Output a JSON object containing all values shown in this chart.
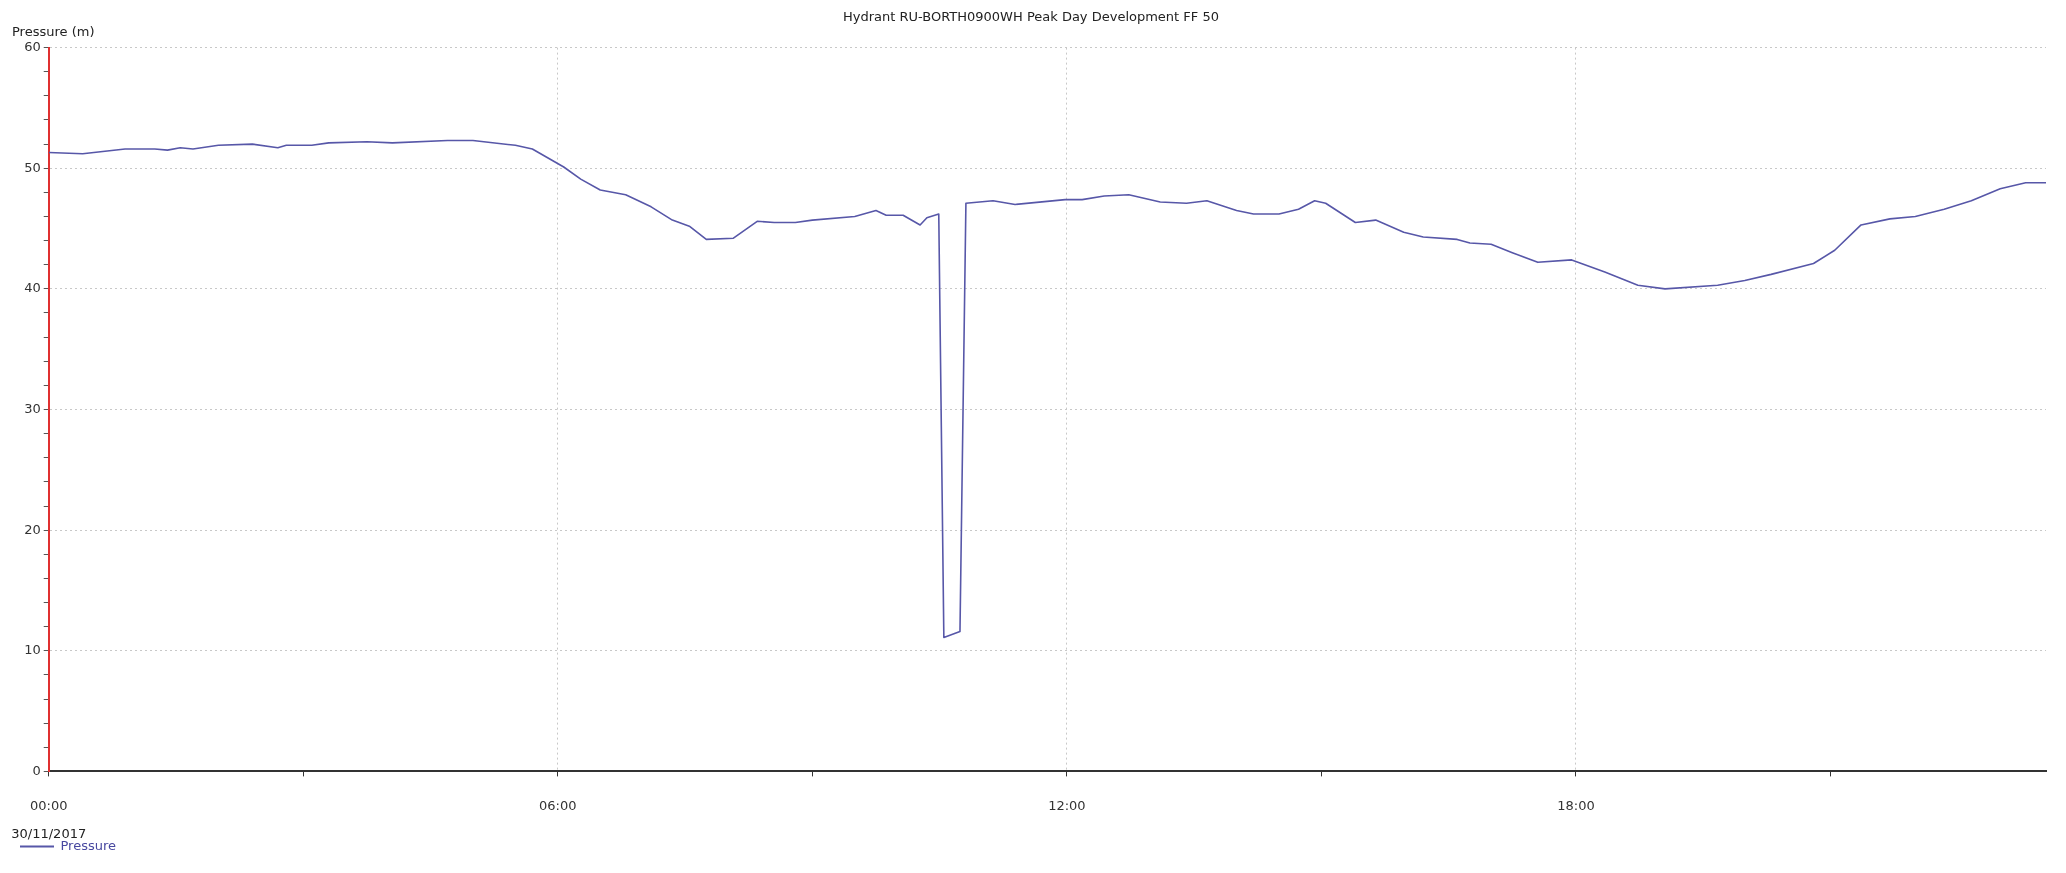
{
  "chart_data": {
    "type": "line",
    "title": "Hydrant RU-BORTH0900WH Peak Day Development FF 50",
    "ylabel": "Pressure (m)",
    "annotations": [
      "30/11/2017"
    ],
    "x": [
      0,
      0.4,
      0.9,
      1.25,
      1.4,
      1.55,
      1.7,
      2.0,
      2.4,
      2.7,
      2.8,
      3.1,
      3.3,
      3.75,
      4.05,
      4.7,
      5.0,
      5.5,
      5.7,
      6.07,
      6.27,
      6.5,
      6.8,
      7.1,
      7.35,
      7.55,
      7.75,
      8.07,
      8.35,
      8.55,
      8.8,
      9.0,
      9.5,
      9.75,
      9.87,
      10.07,
      10.27,
      10.35,
      10.49,
      10.55,
      10.74,
      10.81,
      11.13,
      11.39,
      11.98,
      12.18,
      12.44,
      12.73,
      13.1,
      13.41,
      13.65,
      14.0,
      14.2,
      14.5,
      14.73,
      14.92,
      15.05,
      15.4,
      15.64,
      15.97,
      16.2,
      16.6,
      16.75,
      17.0,
      17.25,
      17.55,
      17.95,
      18.34,
      18.73,
      19.05,
      19.67,
      19.99,
      20.3,
      20.8,
      21.05,
      21.36,
      21.7,
      22.0,
      22.34,
      22.66,
      23.0,
      23.3,
      23.54
    ],
    "series": [
      {
        "name": "Pressure",
        "color": "#5757a8",
        "values": [
          51.3,
          51.2,
          51.6,
          51.6,
          51.5,
          51.7,
          51.6,
          51.9,
          52.0,
          51.7,
          51.9,
          51.9,
          52.1,
          52.2,
          52.1,
          52.3,
          52.3,
          51.9,
          51.6,
          50.1,
          49.1,
          48.2,
          47.8,
          46.8,
          45.7,
          45.2,
          44.1,
          44.2,
          45.6,
          45.5,
          45.5,
          45.7,
          46.0,
          46.5,
          46.1,
          46.1,
          45.3,
          45.9,
          46.2,
          11.1,
          11.6,
          47.1,
          47.3,
          47.0,
          47.4,
          47.4,
          47.7,
          47.8,
          47.2,
          47.1,
          47.3,
          46.5,
          46.2,
          46.2,
          46.6,
          47.3,
          47.1,
          45.5,
          45.7,
          44.7,
          44.3,
          44.1,
          43.8,
          43.7,
          43.0,
          42.2,
          42.4,
          41.4,
          40.3,
          40.0,
          40.3,
          40.7,
          41.2,
          42.1,
          43.2,
          45.3,
          45.8,
          46.0,
          46.6,
          47.3,
          48.3,
          48.8,
          48.8
        ]
      }
    ],
    "xlim": [
      0,
      23.54
    ],
    "xticks": [
      {
        "value": 0,
        "label": "00:00"
      },
      {
        "value": 3,
        "label": null
      },
      {
        "value": 6,
        "label": "06:00"
      },
      {
        "value": 9,
        "label": null
      },
      {
        "value": 12,
        "label": "12:00"
      },
      {
        "value": 15,
        "label": null
      },
      {
        "value": 18,
        "label": "18:00"
      },
      {
        "value": 21,
        "label": null
      }
    ],
    "ylim": [
      0,
      60
    ],
    "yticks": [
      0,
      {
        "value": 2,
        "label": null
      },
      {
        "value": 4,
        "label": null
      },
      {
        "value": 6,
        "label": null
      },
      {
        "value": 8,
        "label": null
      },
      10,
      {
        "value": 12,
        "label": null
      },
      {
        "value": 14,
        "label": null
      },
      {
        "value": 16,
        "label": null
      },
      {
        "value": 18,
        "label": null
      },
      20,
      {
        "value": 22,
        "label": null
      },
      {
        "value": 24,
        "label": null
      },
      {
        "value": 26,
        "label": null
      },
      {
        "value": 28,
        "label": null
      },
      30,
      {
        "value": 32,
        "label": null
      },
      {
        "value": 34,
        "label": null
      },
      {
        "value": 36,
        "label": null
      },
      {
        "value": 38,
        "label": null
      },
      40,
      {
        "value": 42,
        "label": null
      },
      {
        "value": 44,
        "label": null
      },
      {
        "value": 46,
        "label": null
      },
      {
        "value": 48,
        "label": null
      },
      50,
      {
        "value": 52,
        "label": null
      },
      {
        "value": 54,
        "label": null
      },
      {
        "value": 56,
        "label": null
      },
      {
        "value": 58,
        "label": null
      },
      60
    ],
    "grid": true,
    "legend": "bottom left",
    "marker": "none",
    "line_style": "solid"
  }
}
